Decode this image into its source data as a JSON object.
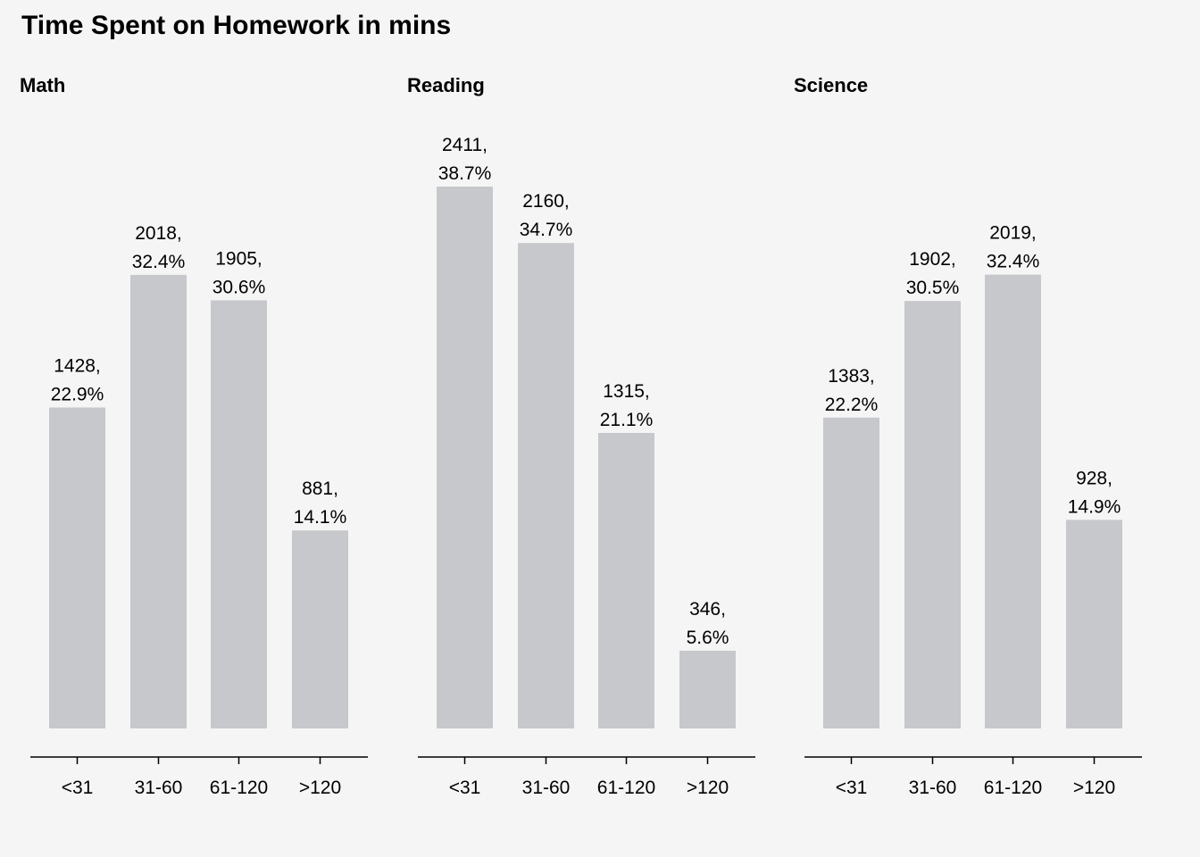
{
  "chart_data": {
    "type": "bar",
    "title": "Time Spent on Homework in mins",
    "bar_color": "#c7c8cb",
    "axis_color": "#000000",
    "background": "#f5f5f5",
    "categories": [
      "<31",
      "31-60",
      "61-120",
      ">120"
    ],
    "panels": [
      {
        "name": "Math",
        "values": [
          1428,
          2018,
          1905,
          881
        ],
        "percents": [
          "22.9%",
          "32.4%",
          "30.6%",
          "14.1%"
        ]
      },
      {
        "name": "Reading",
        "values": [
          2411,
          2160,
          1315,
          346
        ],
        "percents": [
          "38.7%",
          "34.7%",
          "21.1%",
          "5.6%"
        ]
      },
      {
        "name": "Science",
        "values": [
          1383,
          1902,
          2019,
          928
        ],
        "percents": [
          "22.2%",
          "30.5%",
          "32.4%",
          "14.9%"
        ]
      }
    ],
    "ylim": [
      0,
      2411
    ],
    "grid": false,
    "legend": "none"
  }
}
